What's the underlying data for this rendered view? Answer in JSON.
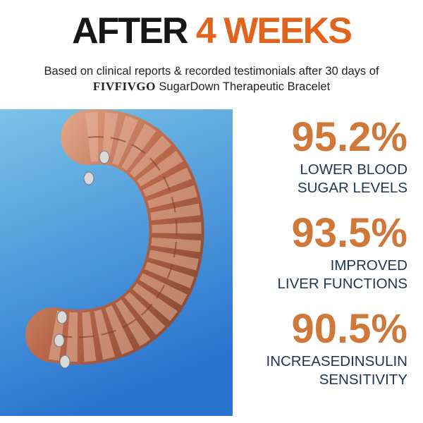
{
  "header": {
    "title_part1": "AFTER",
    "title_part2": "4 WEEKS",
    "subtitle_line1": "Based on clinical reports & recorded testimonials after 30 days of",
    "brand": "FIVFIVGO",
    "subtitle_line2_rest": "SugarDown Therapeutic Bracelet"
  },
  "stats": [
    {
      "value": "95.2%",
      "label_lines": [
        "LOWER BLOOD",
        "SUGAR LEVELS"
      ]
    },
    {
      "value": "93.5%",
      "label_lines": [
        "IMPROVED",
        "LIVER FUNCTIONS"
      ]
    },
    {
      "value": "90.5%",
      "label_lines": [
        "INCREASEDINSULIN",
        "SENSITIVITY"
      ]
    }
  ]
}
